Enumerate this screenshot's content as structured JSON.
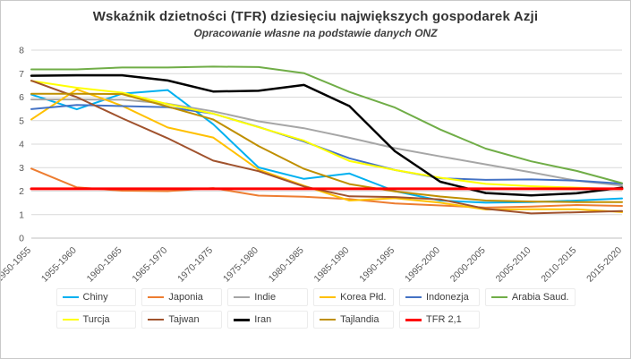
{
  "chart_data": {
    "type": "line",
    "title": "Wskaźnik dzietności (TFR) dziesięciu największych gospodarek Azji",
    "subtitle": "Opracowanie własne na podstawie danych ONZ",
    "categories": [
      "1950-1955",
      "1955-1960",
      "1960-1965",
      "1965-1970",
      "1970-1975",
      "1975-1980",
      "1980-1985",
      "1985-1990",
      "1990-1995",
      "1995-2000",
      "2000-2005",
      "2005-2010",
      "2010-2015",
      "2015-2020"
    ],
    "ylim": [
      0,
      8
    ],
    "ytick_step": 1,
    "grid": true,
    "legend_position": "bottom",
    "axis_text_color": "#595959",
    "gridline_color": "#d9d9d9",
    "series": [
      {
        "name": "Chiny",
        "color": "#00B0F0",
        "width": 2,
        "values": [
          6.11,
          5.48,
          6.15,
          6.3,
          4.85,
          3.01,
          2.52,
          2.75,
          2.0,
          1.6,
          1.51,
          1.53,
          1.6,
          1.69
        ]
      },
      {
        "name": "Japonia",
        "color": "#ED7D31",
        "width": 2,
        "values": [
          2.96,
          2.16,
          2.02,
          2.0,
          2.13,
          1.81,
          1.76,
          1.66,
          1.48,
          1.39,
          1.3,
          1.34,
          1.41,
          1.37
        ]
      },
      {
        "name": "Indie",
        "color": "#A6A6A6",
        "width": 2,
        "values": [
          5.9,
          5.9,
          5.89,
          5.72,
          5.4,
          4.97,
          4.68,
          4.27,
          3.83,
          3.48,
          3.14,
          2.8,
          2.44,
          2.24
        ]
      },
      {
        "name": "Korea Płd.",
        "color": "#FFC000",
        "width": 2,
        "values": [
          5.05,
          6.33,
          5.63,
          4.71,
          4.28,
          2.92,
          2.23,
          1.6,
          1.7,
          1.51,
          1.22,
          1.23,
          1.23,
          1.11
        ]
      },
      {
        "name": "Indonezja",
        "color": "#4472C4",
        "width": 2,
        "values": [
          5.49,
          5.67,
          5.62,
          5.57,
          5.3,
          4.73,
          4.11,
          3.4,
          2.9,
          2.55,
          2.48,
          2.5,
          2.45,
          2.32
        ]
      },
      {
        "name": "Arabia Saud.",
        "color": "#70AD47",
        "width": 2,
        "values": [
          7.18,
          7.18,
          7.26,
          7.26,
          7.3,
          7.28,
          7.02,
          6.22,
          5.56,
          4.62,
          3.81,
          3.27,
          2.86,
          2.34
        ]
      },
      {
        "name": "Turcja",
        "color": "#FFFF00",
        "width": 2,
        "values": [
          6.69,
          6.4,
          6.19,
          5.7,
          5.3,
          4.72,
          4.15,
          3.28,
          2.9,
          2.57,
          2.31,
          2.21,
          2.15,
          2.08
        ]
      },
      {
        "name": "Tajwan",
        "color": "#A0522D",
        "width": 2,
        "values": [
          6.7,
          6.0,
          5.1,
          4.25,
          3.3,
          2.85,
          2.2,
          1.78,
          1.75,
          1.65,
          1.25,
          1.05,
          1.1,
          1.15
        ]
      },
      {
        "name": "Iran",
        "color": "#000000",
        "width": 2.5,
        "values": [
          6.91,
          6.93,
          6.93,
          6.71,
          6.24,
          6.27,
          6.52,
          5.62,
          3.7,
          2.4,
          1.92,
          1.82,
          1.91,
          2.15
        ]
      },
      {
        "name": "Tajlandia",
        "color": "#BF8F00",
        "width": 2,
        "values": [
          6.14,
          6.14,
          6.13,
          5.6,
          5.05,
          3.92,
          2.95,
          2.3,
          1.99,
          1.77,
          1.6,
          1.56,
          1.53,
          1.53
        ]
      },
      {
        "name": "TFR 2,1",
        "color": "#FF0000",
        "width": 3,
        "values": [
          2.1,
          2.1,
          2.1,
          2.1,
          2.1,
          2.1,
          2.1,
          2.1,
          2.1,
          2.1,
          2.1,
          2.1,
          2.1,
          2.1
        ]
      }
    ]
  }
}
